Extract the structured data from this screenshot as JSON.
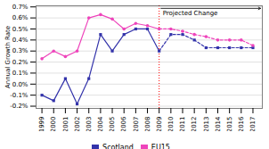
{
  "chart_data": {
    "type": "line",
    "x": [
      1999,
      2000,
      2001,
      2002,
      2003,
      2004,
      2005,
      2006,
      2007,
      2008,
      2009,
      2010,
      2011,
      2012,
      2013,
      2014,
      2015,
      2016,
      2017
    ],
    "series": [
      {
        "name": "Scotland",
        "color": "#3333aa",
        "marker": "square",
        "values": [
          -0.1,
          -0.15,
          0.05,
          -0.18,
          0.05,
          0.45,
          0.3,
          0.45,
          0.5,
          0.5,
          0.3,
          0.45,
          0.45,
          0.4,
          0.33,
          0.33,
          0.33,
          0.33,
          0.33
        ]
      },
      {
        "name": "EU15",
        "color": "#ee44bb",
        "marker": "circle",
        "values": [
          0.23,
          0.3,
          0.25,
          0.3,
          0.6,
          0.63,
          0.59,
          0.5,
          0.55,
          0.53,
          0.5,
          0.5,
          0.48,
          0.45,
          0.43,
          0.4,
          0.4,
          0.4,
          0.35
        ]
      }
    ],
    "xlim": [
      1998.5,
      2017.8
    ],
    "xticks": [
      1999,
      2000,
      2001,
      2002,
      2003,
      2004,
      2005,
      2006,
      2007,
      2008,
      2009,
      2010,
      2011,
      2012,
      2013,
      2014,
      2015,
      2016,
      2017
    ],
    "ylim": [
      -0.22,
      0.71
    ],
    "yticks": [
      {
        "value": -0.2,
        "label": "-0.2%"
      },
      {
        "value": -0.1,
        "label": "-0.1%"
      },
      {
        "value": 0.0,
        "label": "0.0%"
      },
      {
        "value": 0.1,
        "label": "0.1%"
      },
      {
        "value": 0.2,
        "label": "0.2%"
      },
      {
        "value": 0.3,
        "label": "0.3%"
      },
      {
        "value": 0.4,
        "label": "0.4%"
      },
      {
        "value": 0.5,
        "label": "0.5%"
      },
      {
        "value": 0.6,
        "label": "0.6%"
      },
      {
        "value": 0.7,
        "label": "0.7%"
      }
    ],
    "ylabel": "Annual Growth Rate",
    "grid": true,
    "legend": "bottom",
    "projection_start": {
      "x": 2009,
      "color": "red",
      "line_style": "dotted"
    },
    "annotation": "Projected Change"
  }
}
